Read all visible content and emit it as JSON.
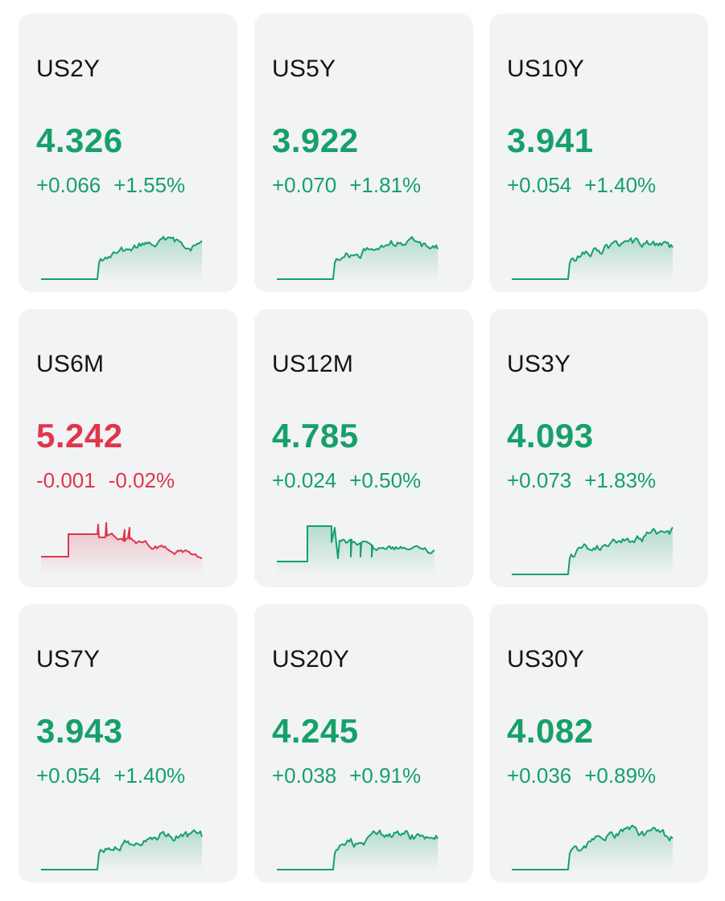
{
  "colors": {
    "up": "#16a06a",
    "down": "#e0364c",
    "card_bg": "#f2f3f5",
    "text": "#141414"
  },
  "cards": [
    {
      "symbol": "US2Y",
      "price": "4.326",
      "change": "+0.066",
      "pct": "+1.55%",
      "direction": "up",
      "spark": "treasury-up"
    },
    {
      "symbol": "US5Y",
      "price": "3.922",
      "change": "+0.070",
      "pct": "+1.81%",
      "direction": "up",
      "spark": "treasury-up"
    },
    {
      "symbol": "US10Y",
      "price": "3.941",
      "change": "+0.054",
      "pct": "+1.40%",
      "direction": "up",
      "spark": "treasury-up"
    },
    {
      "symbol": "US6M",
      "price": "5.242",
      "change": "-0.001",
      "pct": "-0.02%",
      "direction": "down",
      "spark": "spike-down"
    },
    {
      "symbol": "US12M",
      "price": "4.785",
      "change": "+0.024",
      "pct": "+0.50%",
      "direction": "up",
      "spark": "spike-flat"
    },
    {
      "symbol": "US3Y",
      "price": "4.093",
      "change": "+0.073",
      "pct": "+1.83%",
      "direction": "up",
      "spark": "treasury-up-rising"
    },
    {
      "symbol": "US7Y",
      "price": "3.943",
      "change": "+0.054",
      "pct": "+1.40%",
      "direction": "up",
      "spark": "treasury-up"
    },
    {
      "symbol": "US20Y",
      "price": "4.245",
      "change": "+0.038",
      "pct": "+0.91%",
      "direction": "up",
      "spark": "treasury-up"
    },
    {
      "symbol": "US30Y",
      "price": "4.082",
      "change": "+0.036",
      "pct": "+0.89%",
      "direction": "up",
      "spark": "treasury-up"
    }
  ]
}
